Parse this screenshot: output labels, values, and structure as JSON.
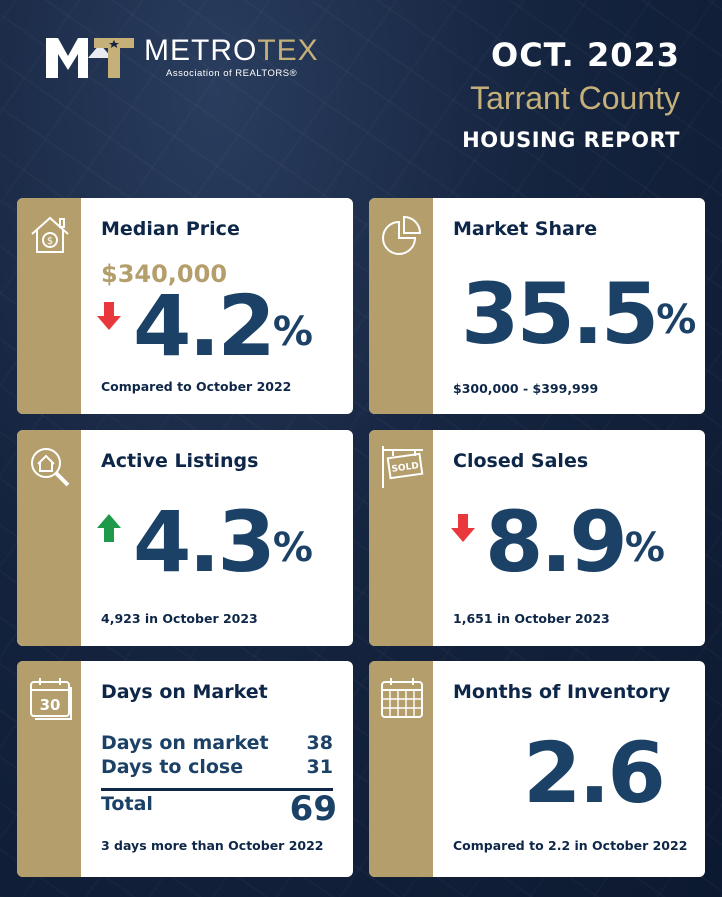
{
  "header": {
    "logo_metro": "METRO",
    "logo_tex": "TEX",
    "logo_sub": "Association of REALTORS®",
    "date": "OCT. 2023",
    "county": "Tarrant County",
    "report": "HOUSING REPORT"
  },
  "colors": {
    "navy": "#0e2748",
    "gold": "#b49f6c",
    "blue": "#1c4166",
    "down": "#e8383b",
    "up": "#1f9a4b"
  },
  "cards": {
    "median_price": {
      "icon": "house-dollar-icon",
      "title": "Median Price",
      "price": "$340,000",
      "direction": "down",
      "value": "4.2",
      "unit": "%",
      "footer": "Compared to October 2022"
    },
    "market_share": {
      "icon": "pie-chart-icon",
      "title": "Market Share",
      "value": "35.5",
      "unit": "%",
      "footer": "$300,000 - $399,999"
    },
    "active_listings": {
      "icon": "house-search-icon",
      "title": "Active Listings",
      "direction": "up",
      "value": "4.3",
      "unit": "%",
      "footer": "4,923 in October 2023"
    },
    "closed_sales": {
      "icon": "sold-sign-icon",
      "sign_text": "SOLD",
      "title": "Closed Sales",
      "direction": "down",
      "value": "8.9",
      "unit": "%",
      "footer": "1,651 in October 2023"
    },
    "days_on_market": {
      "icon": "calendar-30-icon",
      "calendar_text": "30",
      "title": "Days on Market",
      "rows": [
        {
          "label": "Days on market",
          "value": "38"
        },
        {
          "label": "Days to close",
          "value": "31"
        }
      ],
      "total_label": "Total",
      "total_value": "69",
      "footer": "3 days more than October 2022"
    },
    "months_inventory": {
      "icon": "calendar-grid-icon",
      "title": "Months of Inventory",
      "value": "2.6",
      "footer": "Compared to 2.2 in October 2022"
    }
  }
}
